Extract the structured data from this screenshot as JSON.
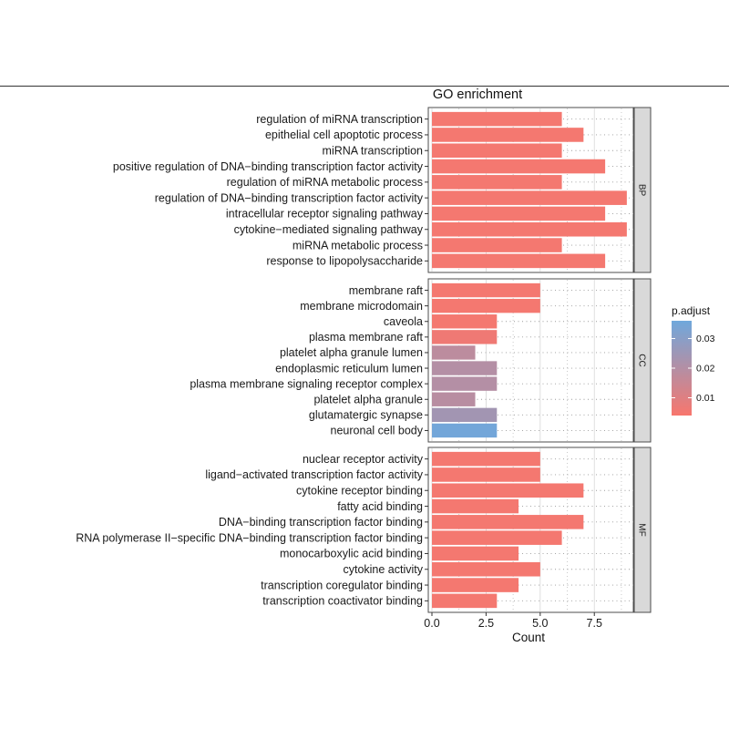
{
  "chart_data": {
    "type": "bar",
    "orientation": "horizontal",
    "title": "GO enrichment",
    "xlabel": "Count",
    "xlim": [
      0,
      9.3
    ],
    "xticks": [
      0.0,
      2.5,
      5.0,
      7.5
    ],
    "xtick_labels": [
      "0.0",
      "2.5",
      "5.0",
      "7.5"
    ],
    "grid": true,
    "legend": {
      "title": "p.adjust",
      "placement": "right",
      "type": "colorbar",
      "range": [
        0.004,
        0.036
      ],
      "ticks": [
        0.01,
        0.02,
        0.03
      ],
      "tick_labels": [
        "0.01",
        "0.02",
        "0.03"
      ],
      "low_color": "#f8766d",
      "high_color": "#6fa8dc"
    },
    "facets": [
      {
        "name": "BP",
        "terms": [
          {
            "label": "regulation of miRNA transcription",
            "count": 6,
            "p_adjust": 0.005
          },
          {
            "label": "epithelial cell apoptotic process",
            "count": 7,
            "p_adjust": 0.005
          },
          {
            "label": "miRNA transcription",
            "count": 6,
            "p_adjust": 0.005
          },
          {
            "label": "positive regulation of DNA−binding transcription factor activity",
            "count": 8,
            "p_adjust": 0.005
          },
          {
            "label": "regulation of miRNA metabolic process",
            "count": 6,
            "p_adjust": 0.005
          },
          {
            "label": "regulation of DNA−binding transcription factor activity",
            "count": 9,
            "p_adjust": 0.005
          },
          {
            "label": "intracellular receptor signaling pathway",
            "count": 8,
            "p_adjust": 0.005
          },
          {
            "label": "cytokine−mediated signaling pathway",
            "count": 9,
            "p_adjust": 0.005
          },
          {
            "label": "miRNA metabolic process",
            "count": 6,
            "p_adjust": 0.005
          },
          {
            "label": "response to lipopolysaccharide",
            "count": 8,
            "p_adjust": 0.005
          }
        ]
      },
      {
        "name": "CC",
        "terms": [
          {
            "label": "membrane raft",
            "count": 5,
            "p_adjust": 0.005
          },
          {
            "label": "membrane microdomain",
            "count": 5,
            "p_adjust": 0.005
          },
          {
            "label": "caveola",
            "count": 3,
            "p_adjust": 0.005
          },
          {
            "label": "plasma membrane raft",
            "count": 3,
            "p_adjust": 0.006
          },
          {
            "label": "platelet alpha granule lumen",
            "count": 2,
            "p_adjust": 0.018
          },
          {
            "label": "endoplasmic reticulum lumen",
            "count": 3,
            "p_adjust": 0.02
          },
          {
            "label": "plasma membrane signaling receptor complex",
            "count": 3,
            "p_adjust": 0.02
          },
          {
            "label": "platelet alpha granule",
            "count": 2,
            "p_adjust": 0.019
          },
          {
            "label": "glutamatergic synapse",
            "count": 3,
            "p_adjust": 0.024
          },
          {
            "label": "neuronal cell body",
            "count": 3,
            "p_adjust": 0.035
          }
        ]
      },
      {
        "name": "MF",
        "terms": [
          {
            "label": "nuclear receptor activity",
            "count": 5,
            "p_adjust": 0.005
          },
          {
            "label": "ligand−activated transcription factor activity",
            "count": 5,
            "p_adjust": 0.005
          },
          {
            "label": "cytokine receptor binding",
            "count": 7,
            "p_adjust": 0.005
          },
          {
            "label": "fatty acid binding",
            "count": 4,
            "p_adjust": 0.005
          },
          {
            "label": "DNA−binding transcription factor binding",
            "count": 7,
            "p_adjust": 0.005
          },
          {
            "label": "RNA polymerase II−specific DNA−binding transcription factor binding",
            "count": 6,
            "p_adjust": 0.005
          },
          {
            "label": "monocarboxylic acid binding",
            "count": 4,
            "p_adjust": 0.005
          },
          {
            "label": "cytokine activity",
            "count": 5,
            "p_adjust": 0.005
          },
          {
            "label": "transcription coregulator binding",
            "count": 4,
            "p_adjust": 0.005
          },
          {
            "label": "transcription coactivator binding",
            "count": 3,
            "p_adjust": 0.005
          }
        ]
      }
    ]
  }
}
